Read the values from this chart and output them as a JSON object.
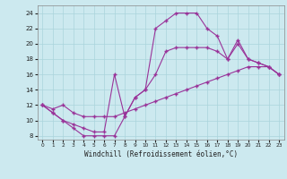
{
  "xlabel": "Windchill (Refroidissement éolien,°C)",
  "bg_color": "#cce9ef",
  "line_color": "#993399",
  "grid_color": "#aad4dc",
  "xlim": [
    -0.5,
    23.5
  ],
  "ylim": [
    7.5,
    25.0
  ],
  "xticks": [
    0,
    1,
    2,
    3,
    4,
    5,
    6,
    7,
    8,
    9,
    10,
    11,
    12,
    13,
    14,
    15,
    16,
    17,
    18,
    19,
    20,
    21,
    22,
    23
  ],
  "yticks": [
    8,
    10,
    12,
    14,
    16,
    18,
    20,
    22,
    24
  ],
  "line1_x": [
    0,
    1,
    2,
    3,
    4,
    5,
    6,
    7,
    8,
    9,
    10,
    11,
    12,
    13,
    14,
    15,
    16,
    17,
    18,
    19,
    20,
    21,
    22,
    23
  ],
  "line1_y": [
    12,
    11,
    10,
    9,
    8,
    8,
    8,
    8,
    10.5,
    13,
    14,
    16,
    19,
    19.5,
    19.5,
    19.5,
    19.5,
    19,
    18,
    20,
    18,
    17.5,
    17,
    16
  ],
  "line2_x": [
    0,
    1,
    2,
    3,
    4,
    5,
    6,
    7,
    8,
    9,
    10,
    11,
    12,
    13,
    14,
    15,
    16,
    17,
    18,
    19,
    20,
    21,
    22,
    23
  ],
  "line2_y": [
    12,
    11,
    10,
    9.5,
    9.0,
    8.5,
    8.5,
    16,
    10.5,
    13,
    14,
    22,
    23,
    24,
    24,
    24,
    22,
    21,
    18,
    20.5,
    18,
    17.5,
    17,
    16
  ],
  "line3_x": [
    0,
    1,
    2,
    3,
    4,
    5,
    6,
    7,
    8,
    9,
    10,
    11,
    12,
    13,
    14,
    15,
    16,
    17,
    18,
    19,
    20,
    21,
    22,
    23
  ],
  "line3_y": [
    12,
    11.5,
    12,
    11,
    10.5,
    10.5,
    10.5,
    10.5,
    11,
    11.5,
    12,
    12.5,
    13,
    13.5,
    14,
    14.5,
    15,
    15.5,
    16,
    16.5,
    17,
    17,
    17,
    16
  ]
}
